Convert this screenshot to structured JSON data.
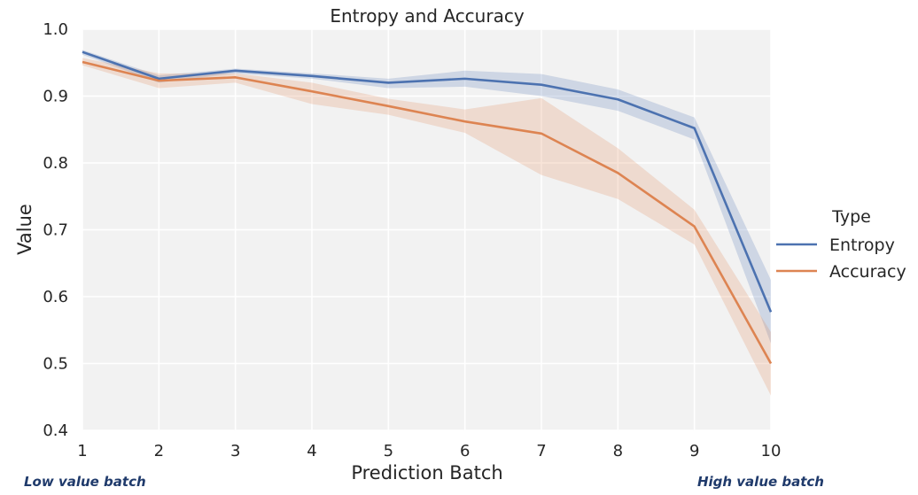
{
  "chart_data": {
    "type": "line",
    "title": "Entropy and Accuracy",
    "xlabel": "Prediction Batch",
    "ylabel": "Value",
    "x": [
      1,
      2,
      3,
      4,
      5,
      6,
      7,
      8,
      9,
      10
    ],
    "xlim": [
      1,
      10
    ],
    "ylim": [
      0.4,
      1.0
    ],
    "yticks": [
      0.4,
      0.5,
      0.6,
      0.7,
      0.8,
      0.9,
      1.0
    ],
    "grid": true,
    "legend": {
      "title": "Type",
      "placement": "right"
    },
    "series": [
      {
        "name": "Entropy",
        "color": "#4c72b0",
        "values": [
          0.966,
          0.926,
          0.938,
          0.93,
          0.92,
          0.926,
          0.917,
          0.895,
          0.852,
          0.577
        ],
        "lower": [
          0.962,
          0.92,
          0.934,
          0.926,
          0.912,
          0.914,
          0.9,
          0.878,
          0.835,
          0.53
        ],
        "upper": [
          0.969,
          0.931,
          0.941,
          0.934,
          0.926,
          0.938,
          0.933,
          0.91,
          0.868,
          0.625
        ]
      },
      {
        "name": "Accuracy",
        "color": "#dd8452",
        "values": [
          0.951,
          0.923,
          0.928,
          0.907,
          0.885,
          0.862,
          0.844,
          0.785,
          0.705,
          0.5
        ],
        "lower": [
          0.946,
          0.912,
          0.92,
          0.888,
          0.872,
          0.845,
          0.782,
          0.746,
          0.678,
          0.452
        ],
        "upper": [
          0.957,
          0.934,
          0.934,
          0.92,
          0.896,
          0.88,
          0.897,
          0.822,
          0.73,
          0.547
        ]
      }
    ],
    "annotations": {
      "left": "Low value batch",
      "right": "High value batch"
    }
  }
}
